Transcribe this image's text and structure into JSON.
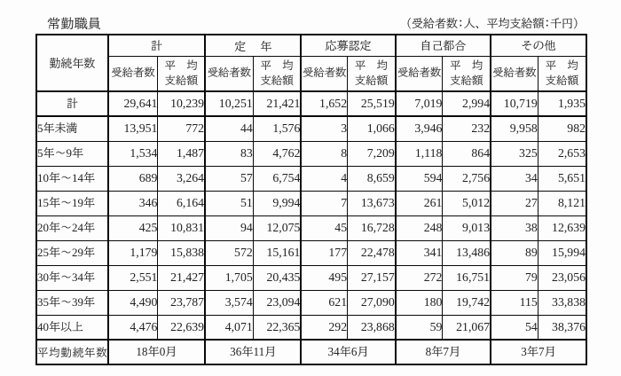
{
  "colors": {
    "background": "#fdfdfd",
    "text": "#222222",
    "line": "#0a0a0a"
  },
  "page": {
    "title": "常勤職員",
    "unit_note": "（受給者数:人、平均支給額:千円）"
  },
  "table": {
    "corner_header": "勤続年数",
    "groups": [
      {
        "label": "計"
      },
      {
        "label": "定　年"
      },
      {
        "label": "応募認定"
      },
      {
        "label": "自己都合"
      },
      {
        "label": "その他"
      }
    ],
    "sub_headers": {
      "recipients": "受給者数",
      "average_line1": "平　均",
      "average_line2": "支給額"
    },
    "rows": [
      {
        "label": "計",
        "values": [
          "29,641",
          "10,239",
          "10,251",
          "21,421",
          "1,652",
          "25,519",
          "7,019",
          "2,994",
          "10,719",
          "1,935"
        ]
      },
      {
        "label": "5年未満",
        "values": [
          "13,951",
          "772",
          "44",
          "1,576",
          "3",
          "1,066",
          "3,946",
          "232",
          "9,958",
          "982"
        ]
      },
      {
        "label": "5年〜9年",
        "values": [
          "1,534",
          "1,487",
          "83",
          "4,762",
          "8",
          "7,209",
          "1,118",
          "864",
          "325",
          "2,653"
        ]
      },
      {
        "label": "10年〜14年",
        "values": [
          "689",
          "3,264",
          "57",
          "6,754",
          "4",
          "8,659",
          "594",
          "2,756",
          "34",
          "5,651"
        ]
      },
      {
        "label": "15年〜19年",
        "values": [
          "346",
          "6,164",
          "51",
          "9,994",
          "7",
          "13,673",
          "261",
          "5,012",
          "27",
          "8,121"
        ]
      },
      {
        "label": "20年〜24年",
        "values": [
          "425",
          "10,831",
          "94",
          "12,075",
          "45",
          "16,728",
          "248",
          "9,013",
          "38",
          "12,639"
        ]
      },
      {
        "label": "25年〜29年",
        "values": [
          "1,179",
          "15,838",
          "572",
          "15,161",
          "177",
          "22,478",
          "341",
          "13,486",
          "89",
          "15,994"
        ]
      },
      {
        "label": "30年〜34年",
        "values": [
          "2,551",
          "21,427",
          "1,705",
          "20,435",
          "495",
          "27,157",
          "272",
          "16,751",
          "79",
          "23,056"
        ]
      },
      {
        "label": "35年〜39年",
        "values": [
          "4,490",
          "23,787",
          "3,574",
          "23,094",
          "621",
          "27,090",
          "180",
          "19,742",
          "115",
          "33,838"
        ]
      },
      {
        "label": "40年以上",
        "values": [
          "4,476",
          "22,639",
          "4,071",
          "22,365",
          "292",
          "23,868",
          "59",
          "21,067",
          "54",
          "38,376"
        ]
      }
    ],
    "footer": {
      "label": "平均勤続年数",
      "values": [
        "18年0月",
        "36年11月",
        "34年6月",
        "8年7月",
        "3年7月"
      ]
    }
  }
}
